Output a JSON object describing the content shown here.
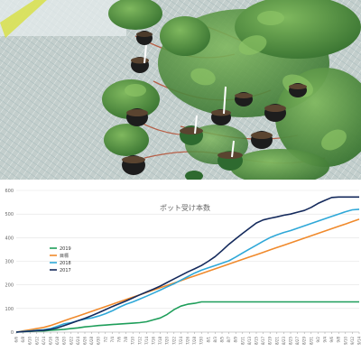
{
  "photo": {
    "subject": "strawberry runner plants rooting into small black pots on netting",
    "colors": {
      "leaf": "#3d7a35",
      "leaf_light": "#6aa452",
      "runner": "#b5553a",
      "pot": "#1d1d1d",
      "net": "#c8d2d0",
      "sky": "#e9eef0"
    }
  },
  "chart_data": {
    "type": "line",
    "title": "ポット受け本数",
    "xlabel": "",
    "ylabel": "",
    "ylim": [
      0,
      600
    ],
    "yticks": [
      0,
      100,
      200,
      300,
      400,
      500,
      600
    ],
    "ytick_labels": [
      "0",
      "100",
      "200",
      "300",
      "400",
      "500",
      "600"
    ],
    "grid": true,
    "legend_position": "left-middle",
    "x": [
      "6/6",
      "6/8",
      "6/10",
      "6/12",
      "6/14",
      "6/16",
      "6/18",
      "6/20",
      "6/22",
      "6/24",
      "6/26",
      "6/28",
      "6/30",
      "7/2",
      "7/4",
      "7/6",
      "7/8",
      "7/10",
      "7/12",
      "7/14",
      "7/16",
      "7/18",
      "7/20",
      "7/22",
      "7/24",
      "7/26",
      "7/28",
      "7/30",
      "8/1",
      "8/3",
      "8/5",
      "8/7",
      "8/9",
      "8/11",
      "8/13",
      "8/15",
      "8/17",
      "8/19",
      "8/21",
      "8/23",
      "8/25",
      "8/27",
      "8/29",
      "8/31",
      "9/2",
      "9/4",
      "9/6",
      "9/8",
      "9/10",
      "9/12",
      "9/14"
    ],
    "series": [
      {
        "name": "2019",
        "color": "#1e9e5a",
        "values": [
          0,
          2,
          3,
          5,
          5,
          8,
          10,
          12,
          15,
          18,
          22,
          25,
          28,
          30,
          32,
          34,
          36,
          38,
          40,
          44,
          52,
          60,
          75,
          95,
          110,
          118,
          122,
          128,
          128,
          128,
          128,
          128,
          128,
          128,
          128,
          128,
          128,
          128,
          128,
          128,
          128,
          128,
          128,
          128,
          128,
          128,
          128,
          128,
          128,
          128,
          128
        ]
      },
      {
        "name": "目標",
        "color": "#f08a2c",
        "values": [
          0,
          5,
          10,
          15,
          20,
          28,
          38,
          48,
          58,
          68,
          78,
          88,
          98,
          108,
          118,
          128,
          138,
          148,
          158,
          168,
          178,
          188,
          198,
          208,
          218,
          228,
          238,
          248,
          258,
          268,
          278,
          288,
          298,
          308,
          318,
          328,
          338,
          348,
          358,
          368,
          378,
          388,
          398,
          408,
          418,
          428,
          438,
          448,
          458,
          468,
          478
        ]
      },
      {
        "name": "2018",
        "color": "#2fa8d8",
        "values": [
          0,
          3,
          5,
          8,
          10,
          15,
          25,
          35,
          40,
          48,
          55,
          60,
          68,
          78,
          90,
          105,
          118,
          128,
          140,
          152,
          165,
          178,
          192,
          205,
          220,
          235,
          250,
          262,
          272,
          282,
          292,
          302,
          318,
          335,
          352,
          368,
          385,
          400,
          412,
          422,
          430,
          440,
          450,
          460,
          470,
          480,
          490,
          500,
          510,
          518,
          520
        ]
      },
      {
        "name": "2017",
        "color": "#142a5c",
        "values": [
          0,
          2,
          4,
          6,
          8,
          12,
          18,
          28,
          38,
          48,
          58,
          70,
          82,
          95,
          108,
          120,
          132,
          145,
          158,
          170,
          182,
          195,
          210,
          225,
          240,
          255,
          268,
          282,
          300,
          320,
          345,
          372,
          395,
          418,
          440,
          462,
          475,
          482,
          488,
          495,
          500,
          508,
          515,
          528,
          545,
          558,
          570,
          572,
          572,
          572,
          572
        ]
      }
    ]
  }
}
